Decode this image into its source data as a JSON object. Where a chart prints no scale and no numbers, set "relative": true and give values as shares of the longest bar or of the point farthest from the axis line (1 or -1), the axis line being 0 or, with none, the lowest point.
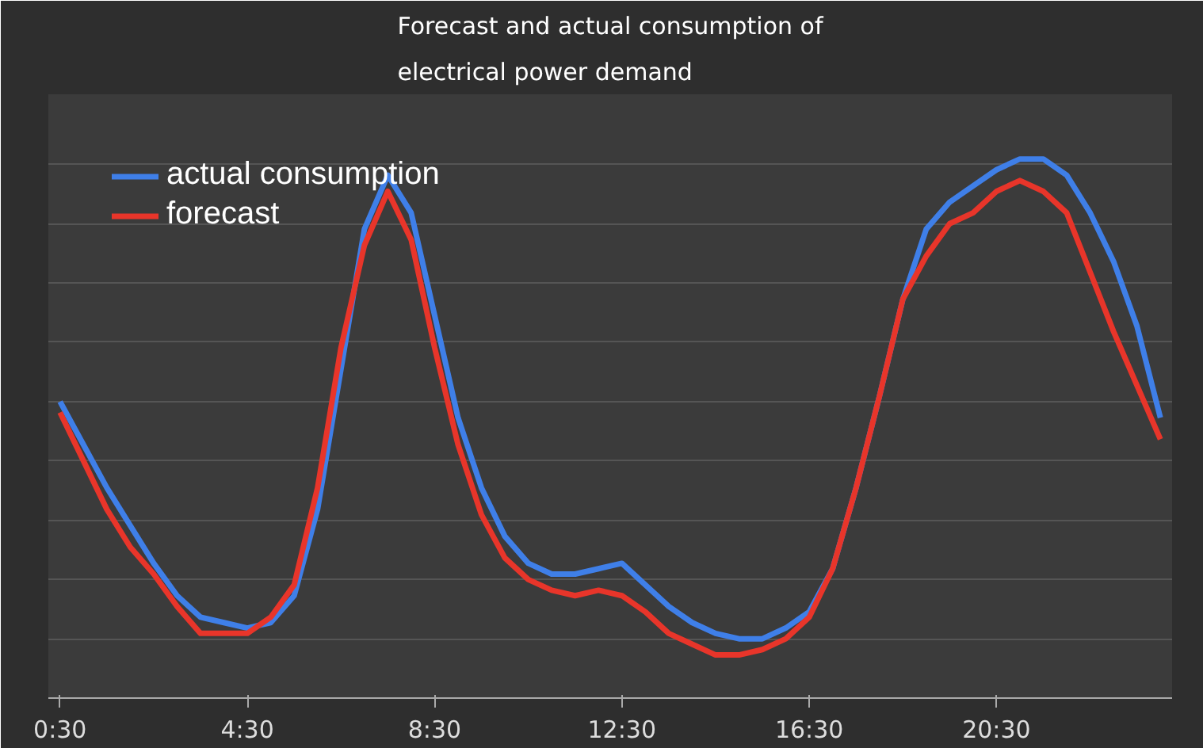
{
  "chart_data": {
    "type": "line",
    "title": "Forecast and actual consumption of\nelectrical power demand",
    "relative": true,
    "x": [
      0.5,
      1,
      1.5,
      2,
      2.5,
      3,
      3.5,
      4,
      4.5,
      5,
      5.5,
      6,
      6.5,
      7,
      7.5,
      8,
      8.5,
      9,
      9.5,
      10,
      10.5,
      11,
      11.5,
      12,
      12.5,
      13,
      13.5,
      14,
      14.5,
      15,
      15.5,
      16,
      16.5,
      17,
      17.5,
      18,
      18.5,
      19,
      19.5,
      20,
      20.5,
      21,
      21.5,
      22,
      22.5,
      23,
      23.5,
      24
    ],
    "xlim": [
      0.25,
      24.25
    ],
    "xticks": [
      {
        "value": 0.5,
        "label": "0:30"
      },
      {
        "value": 4.5,
        "label": "4:30"
      },
      {
        "value": 8.5,
        "label": "8:30"
      },
      {
        "value": 12.5,
        "label": "12:30"
      },
      {
        "value": 16.5,
        "label": "16:30"
      },
      {
        "value": 20.5,
        "label": "20:30"
      }
    ],
    "series": [
      {
        "name": "actual consumption",
        "color": "#3f7fe8",
        "values": [
          0.55,
          0.47,
          0.39,
          0.32,
          0.25,
          0.19,
          0.15,
          0.14,
          0.13,
          0.14,
          0.19,
          0.35,
          0.61,
          0.87,
          0.97,
          0.9,
          0.71,
          0.52,
          0.39,
          0.3,
          0.25,
          0.23,
          0.23,
          0.24,
          0.25,
          0.21,
          0.17,
          0.14,
          0.12,
          0.11,
          0.11,
          0.13,
          0.16,
          0.24,
          0.39,
          0.56,
          0.74,
          0.87,
          0.92,
          0.95,
          0.98,
          1,
          1,
          0.97,
          0.9,
          0.81,
          0.69,
          0.52
        ]
      },
      {
        "name": "forecast",
        "color": "#e8352a",
        "values": [
          0.53,
          0.44,
          0.35,
          0.28,
          0.23,
          0.17,
          0.12,
          0.12,
          0.12,
          0.15,
          0.21,
          0.39,
          0.65,
          0.84,
          0.94,
          0.85,
          0.65,
          0.47,
          0.34,
          0.26,
          0.22,
          0.2,
          0.19,
          0.2,
          0.19,
          0.16,
          0.12,
          0.1,
          0.08,
          0.08,
          0.09,
          0.11,
          0.15,
          0.24,
          0.39,
          0.56,
          0.74,
          0.82,
          0.88,
          0.9,
          0.94,
          0.96,
          0.94,
          0.9,
          0.79,
          0.68,
          0.58,
          0.48
        ]
      }
    ],
    "grid": "y",
    "legend": "top left",
    "marker": "none",
    "line_style": "solid"
  }
}
